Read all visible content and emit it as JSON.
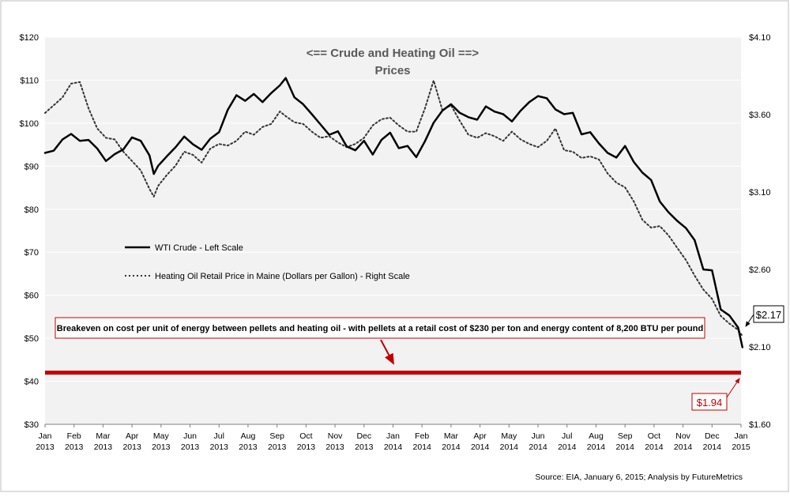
{
  "chart_data": {
    "type": "line",
    "title_line1": "<== Crude and Heating Oil ==>",
    "title_line2": "Prices",
    "source": "Source: EIA, January 6, 2015; Analysis by FutureMetrics",
    "y_left": {
      "min": 30,
      "max": 120,
      "ticks": [
        "$120",
        "$110",
        "$100",
        "$90",
        "$80",
        "$70",
        "$60",
        "$50",
        "$40",
        "$30"
      ]
    },
    "y_right": {
      "min": 1.6,
      "max": 4.1,
      "ticks": [
        "$4.10",
        "$3.60",
        "$3.10",
        "$2.60",
        "$2.10",
        "$1.60"
      ]
    },
    "x_ticks": [
      {
        "m": "Jan",
        "y": "2013"
      },
      {
        "m": "Feb",
        "y": "2013"
      },
      {
        "m": "Mar",
        "y": "2013"
      },
      {
        "m": "Apr",
        "y": "2013"
      },
      {
        "m": "May",
        "y": "2013"
      },
      {
        "m": "Jun",
        "y": "2013"
      },
      {
        "m": "Jul",
        "y": "2013"
      },
      {
        "m": "Aug",
        "y": "2013"
      },
      {
        "m": "Sep",
        "y": "2013"
      },
      {
        "m": "Oct",
        "y": "2013"
      },
      {
        "m": "Nov",
        "y": "2013"
      },
      {
        "m": "Dec",
        "y": "2013"
      },
      {
        "m": "Jan",
        "y": "2014"
      },
      {
        "m": "Feb",
        "y": "2014"
      },
      {
        "m": "Mar",
        "y": "2014"
      },
      {
        "m": "Apr",
        "y": "2014"
      },
      {
        "m": "May",
        "y": "2014"
      },
      {
        "m": "Jun",
        "y": "2014"
      },
      {
        "m": "Jul",
        "y": "2014"
      },
      {
        "m": "Aug",
        "y": "2014"
      },
      {
        "m": "Sep",
        "y": "2014"
      },
      {
        "m": "Oct",
        "y": "2014"
      },
      {
        "m": "Nov",
        "y": "2014"
      },
      {
        "m": "Dec",
        "y": "2014"
      },
      {
        "m": "Jan",
        "y": "2015"
      }
    ],
    "legend": {
      "wti": "WTI Crude - Left Scale",
      "heating": "Heating Oil Retail Price in Maine (Dollars per Gallon) - Right Scale"
    },
    "series": [
      {
        "name": "WTI Crude - Left Scale",
        "axis": "left",
        "style": "solid",
        "color": "#000000",
        "x": [
          0,
          0.3,
          0.6,
          0.9,
          1.2,
          1.5,
          1.8,
          2.1,
          2.4,
          2.7,
          3.0,
          3.3,
          3.6,
          3.75,
          3.9,
          4.2,
          4.5,
          4.8,
          5.1,
          5.4,
          5.7,
          6.0,
          6.3,
          6.6,
          6.9,
          7.2,
          7.5,
          7.8,
          8.1,
          8.3,
          8.6,
          8.9,
          9.2,
          9.5,
          9.8,
          10.1,
          10.4,
          10.7,
          11.0,
          11.3,
          11.6,
          11.9,
          12.2,
          12.5,
          12.8,
          13.1,
          13.4,
          13.7,
          14.0,
          14.3,
          14.6,
          14.9,
          15.2,
          15.5,
          15.8,
          16.1,
          16.4,
          16.7,
          17.0,
          17.3,
          17.6,
          17.9,
          18.2,
          18.5,
          18.8,
          19.1,
          19.4,
          19.7,
          20.0,
          20.3,
          20.6,
          20.9,
          21.2,
          21.5,
          21.8,
          22.1,
          22.4,
          22.7,
          23.0,
          23.3,
          23.6,
          23.9,
          24.05
        ],
        "y": [
          93.1,
          93.6,
          96.2,
          97.5,
          95.9,
          96.1,
          94.1,
          91.2,
          92.8,
          93.9,
          96.7,
          95.9,
          92.5,
          88.2,
          90.1,
          92.3,
          94.4,
          96.9,
          95.1,
          93.8,
          96.4,
          97.9,
          103.1,
          106.5,
          105.2,
          106.8,
          104.9,
          107.0,
          108.8,
          110.5,
          106.0,
          104.4,
          102.1,
          99.7,
          97.3,
          98.1,
          94.6,
          93.7,
          95.9,
          92.7,
          96.1,
          97.8,
          94.2,
          94.7,
          92.1,
          95.8,
          100.1,
          102.9,
          104.4,
          102.4,
          101.4,
          100.8,
          103.9,
          102.7,
          102.1,
          100.4,
          102.9,
          104.9,
          106.3,
          105.8,
          103.2,
          102.1,
          102.4,
          97.4,
          97.9,
          95.3,
          93.1,
          92.0,
          94.7,
          91.0,
          88.5,
          86.8,
          81.8,
          79.3,
          77.3,
          75.6,
          72.8,
          66.0,
          65.8,
          56.7,
          55.3,
          52.5,
          47.9
        ]
      },
      {
        "name": "Heating Oil Retail Price in Maine (Dollars per Gallon) - Right Scale",
        "axis": "right",
        "style": "dotted",
        "color": "#333333",
        "x": [
          0,
          0.3,
          0.6,
          0.9,
          1.2,
          1.5,
          1.8,
          2.1,
          2.4,
          2.7,
          3.0,
          3.3,
          3.6,
          3.75,
          3.9,
          4.2,
          4.5,
          4.8,
          5.1,
          5.4,
          5.7,
          6.0,
          6.3,
          6.6,
          6.9,
          7.2,
          7.5,
          7.8,
          8.1,
          8.3,
          8.6,
          8.9,
          9.2,
          9.5,
          9.8,
          10.1,
          10.4,
          10.7,
          11.0,
          11.3,
          11.6,
          11.9,
          12.2,
          12.5,
          12.8,
          13.1,
          13.4,
          13.7,
          14.0,
          14.3,
          14.6,
          14.9,
          15.2,
          15.5,
          15.8,
          16.1,
          16.4,
          16.7,
          17.0,
          17.3,
          17.6,
          17.9,
          18.2,
          18.5,
          18.8,
          19.1,
          19.4,
          19.7,
          20.0,
          20.3,
          20.6,
          20.9,
          21.2,
          21.5,
          21.8,
          22.1,
          22.4,
          22.7,
          23.0,
          23.3,
          23.6,
          23.9,
          24.05
        ],
        "y": [
          3.61,
          3.66,
          3.71,
          3.8,
          3.81,
          3.64,
          3.51,
          3.45,
          3.44,
          3.36,
          3.3,
          3.24,
          3.12,
          3.07,
          3.14,
          3.21,
          3.27,
          3.36,
          3.34,
          3.29,
          3.38,
          3.41,
          3.4,
          3.43,
          3.49,
          3.47,
          3.52,
          3.54,
          3.62,
          3.59,
          3.55,
          3.54,
          3.49,
          3.45,
          3.46,
          3.42,
          3.39,
          3.41,
          3.45,
          3.53,
          3.57,
          3.58,
          3.53,
          3.49,
          3.49,
          3.64,
          3.82,
          3.63,
          3.66,
          3.56,
          3.47,
          3.45,
          3.48,
          3.46,
          3.43,
          3.49,
          3.44,
          3.41,
          3.39,
          3.43,
          3.51,
          3.37,
          3.36,
          3.32,
          3.33,
          3.31,
          3.22,
          3.16,
          3.13,
          3.04,
          2.92,
          2.87,
          2.88,
          2.82,
          2.74,
          2.66,
          2.56,
          2.47,
          2.41,
          2.3,
          2.25,
          2.21,
          2.17
        ]
      }
    ],
    "breakeven": {
      "value": 42,
      "axis": "left",
      "color": "#c00000",
      "label": "Breakeven on cost per unit of energy between pellets and heating oil - with pellets at a retail cost of $230 per ton and energy content of 8,200 BTU per pound"
    },
    "callouts": {
      "heating_last": "$2.17",
      "breakeven_value": "$1.94"
    }
  }
}
